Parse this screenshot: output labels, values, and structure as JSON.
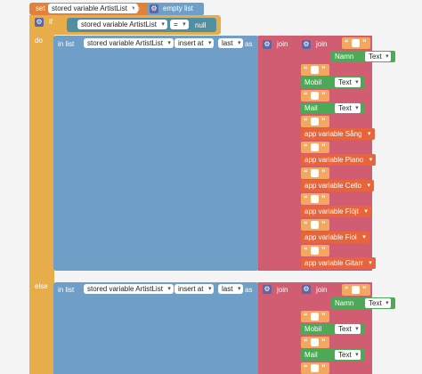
{
  "set_block": {
    "set_label": "set",
    "to_label": "to",
    "variable": "stored variable ArtistList",
    "value": "empty list"
  },
  "if_block": {
    "if_label": "if",
    "do_label": "do",
    "else_label": "else",
    "variable": "stored variable ArtistList",
    "operator": "=",
    "null_label": "null"
  },
  "insert_do": {
    "in_list_label": "in list",
    "variable": "stored variable ArtistList",
    "mode": "insert at",
    "position": "last",
    "as_label": "as",
    "join_label": "join"
  },
  "insert_else": {
    "in_list_label": "in list",
    "variable": "stored variable ArtistList",
    "mode": "insert at",
    "position": "last",
    "as_label": "as",
    "join_label": "join"
  },
  "inner_join_label": "join",
  "quote_symbol": "“ ”",
  "do_items": [
    {
      "kind": "field",
      "label": "Namn",
      "type": "Text"
    },
    {
      "kind": "sep"
    },
    {
      "kind": "field",
      "label": "Mobil",
      "type": "Text"
    },
    {
      "kind": "sep"
    },
    {
      "kind": "field",
      "label": "Mail",
      "type": "Text"
    },
    {
      "kind": "sep"
    },
    {
      "kind": "var",
      "label": "app variable Sång"
    },
    {
      "kind": "sep"
    },
    {
      "kind": "var",
      "label": "app variable Piano"
    },
    {
      "kind": "sep"
    },
    {
      "kind": "var",
      "label": "app variable Cello"
    },
    {
      "kind": "sep"
    },
    {
      "kind": "var",
      "label": "app variable Flöjt"
    },
    {
      "kind": "sep"
    },
    {
      "kind": "var",
      "label": "app variable Fiol"
    },
    {
      "kind": "sep"
    },
    {
      "kind": "var",
      "label": "app variable Gitarr"
    }
  ],
  "else_items": [
    {
      "kind": "field",
      "label": "Namn",
      "type": "Text"
    },
    {
      "kind": "sep"
    },
    {
      "kind": "field",
      "label": "Mobil",
      "type": "Text"
    },
    {
      "kind": "sep"
    },
    {
      "kind": "field",
      "label": "Mail",
      "type": "Text"
    },
    {
      "kind": "sep"
    }
  ],
  "colors": {
    "control": "#e7ad4b",
    "lists": "#6f9fc6",
    "text_join": "#d05d72",
    "string": "#f3a75f",
    "variable": "#e1813a",
    "component": "#4caa56"
  }
}
